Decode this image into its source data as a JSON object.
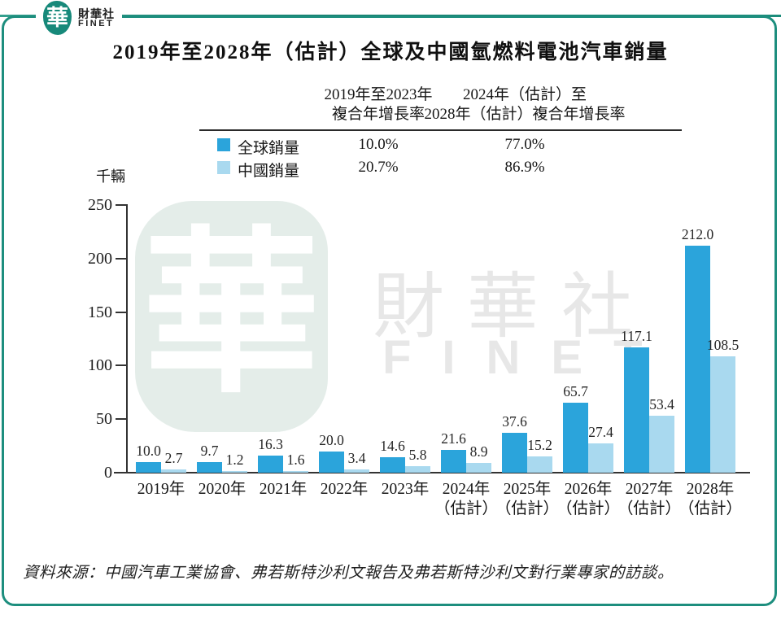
{
  "logo": {
    "seal_char": "華",
    "name_cn": "財華社",
    "name_en": "FINET"
  },
  "title": "2019年至2028年（估計）全球及中國氫燃料電池汽車銷量",
  "summary_table": {
    "col_headers": [
      {
        "line1": "2019年至2023年",
        "line2": "複合年增長率"
      },
      {
        "line1": "2024年（估計）至",
        "line2": "2028年（估計）複合年增長率"
      }
    ],
    "rows": [
      {
        "label": "全球銷量",
        "values": [
          "10.0%",
          "77.0%"
        ]
      },
      {
        "label": "中國銷量",
        "values": [
          "20.7%",
          "86.9%"
        ]
      }
    ]
  },
  "chart_data": {
    "type": "bar",
    "title": "2019年至2028年（估計）全球及中國氫燃料電池汽車銷量",
    "unit_label": "千輛",
    "categories": [
      [
        "2019年"
      ],
      [
        "2020年"
      ],
      [
        "2021年"
      ],
      [
        "2022年"
      ],
      [
        "2023年"
      ],
      [
        "2024年",
        "（估計）"
      ],
      [
        "2025年",
        "（估計）"
      ],
      [
        "2026年",
        "（估計）"
      ],
      [
        "2027年",
        "（估計）"
      ],
      [
        "2028年",
        "（估計）"
      ]
    ],
    "series": [
      {
        "name": "全球銷量",
        "color": "#2ba4db",
        "values": [
          10.0,
          9.7,
          16.3,
          20.0,
          14.6,
          21.6,
          37.6,
          65.7,
          117.1,
          212.0
        ],
        "cagr_2019_2023": "10.0%",
        "cagr_2024_2028": "77.0%"
      },
      {
        "name": "中國銷量",
        "color": "#a9d9ef",
        "values": [
          2.7,
          1.2,
          1.6,
          3.4,
          5.8,
          8.9,
          15.2,
          27.4,
          53.4,
          108.5
        ],
        "cagr_2019_2023": "20.7%",
        "cagr_2024_2028": "86.9%"
      }
    ],
    "ylim": [
      0,
      250
    ],
    "y_ticks": [
      0,
      50,
      100,
      150,
      200,
      250
    ],
    "grid": false,
    "legend_position": "top-table"
  },
  "watermark": {
    "seal_char": "華",
    "text_cn": "財華社",
    "text_en": "FINET"
  },
  "source": "資料來源：中國汽車工業協會、弗若斯特沙利文報告及弗若斯特沙利文對行業專家的訪談。"
}
